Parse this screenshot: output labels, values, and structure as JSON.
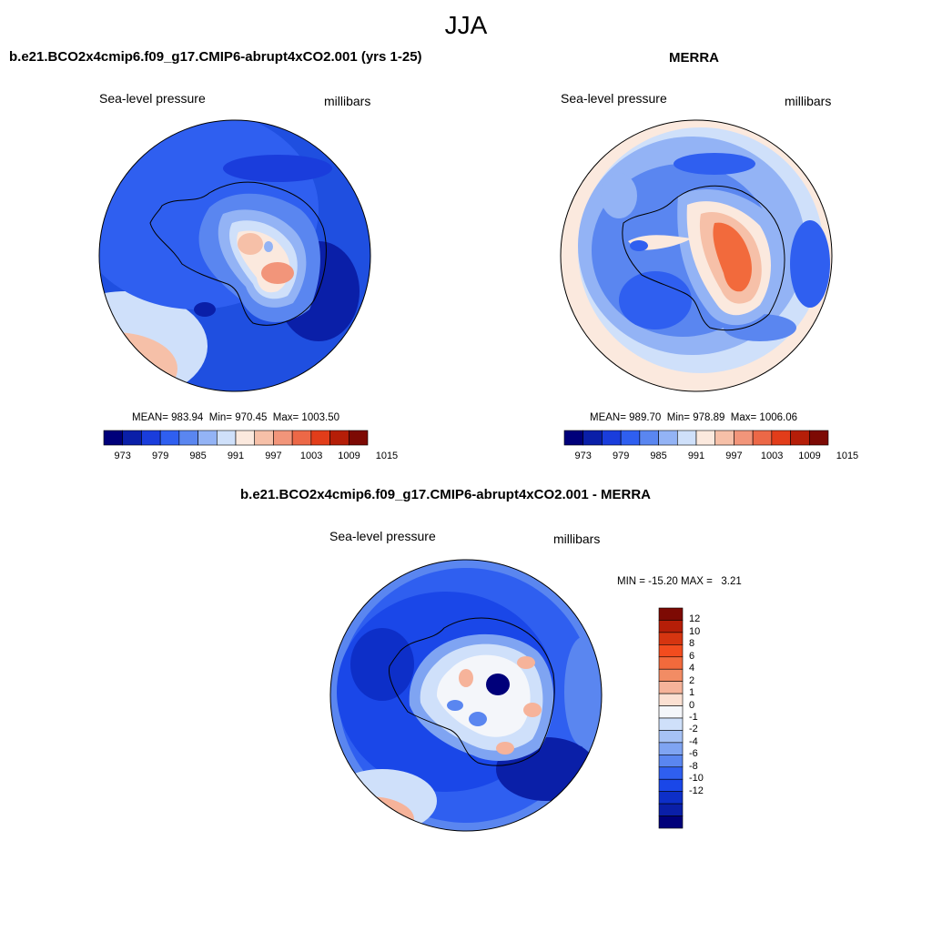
{
  "figure": {
    "season_title": "JJA"
  },
  "panels": {
    "model": {
      "title": "b.e21.BCO2x4cmip6.f09_g17.CMIP6-abrupt4xCO2.001 (yrs 1-25)",
      "left_label": "Sea-level pressure",
      "right_label": "millibars",
      "mean_label": "MEAN=",
      "mean": "983.94",
      "min_label": "Min=",
      "min": "970.45",
      "max_label": "Max=",
      "max": "1003.50"
    },
    "obs": {
      "title": "MERRA",
      "left_label": "Sea-level pressure",
      "right_label": "millibars",
      "mean_label": "MEAN=",
      "mean": "989.70",
      "min_label": "Min=",
      "min": "978.89",
      "max_label": "Max=",
      "max": "1006.06"
    },
    "diff": {
      "title": "b.e21.BCO2x4cmip6.f09_g17.CMIP6-abrupt4xCO2.001 - MERRA",
      "left_label": "Sea-level pressure",
      "right_label": "millibars",
      "minmax_text": "MIN = -15.20 MAX =   3.21"
    }
  },
  "colorbars": {
    "abs": {
      "colors": [
        "#00007a",
        "#0a1fa8",
        "#1a3ddc",
        "#2f5ff0",
        "#5a86f0",
        "#93b3f5",
        "#cfe0fa",
        "#fbe9de",
        "#f6c0a8",
        "#f2957a",
        "#ec6847",
        "#e23d1a",
        "#b51e08",
        "#7d0a04"
      ],
      "tick_labels": [
        "973",
        "979",
        "985",
        "991",
        "997",
        "1003",
        "1009",
        "1015"
      ]
    },
    "diff": {
      "colors": [
        "#7d0a04",
        "#b51e08",
        "#d63510",
        "#f24c1e",
        "#f26a3c",
        "#f28c64",
        "#f6b39a",
        "#fbe0d2",
        "#f4f6fa",
        "#cfe0fa",
        "#a6c2f5",
        "#7fa4f2",
        "#5a86f0",
        "#2f5ff0",
        "#1a47e8",
        "#0d2fc8",
        "#0a1fa8",
        "#00007a"
      ],
      "tick_labels": [
        "12",
        "10",
        "8",
        "6",
        "4",
        "2",
        "1",
        "0",
        "-1",
        "-2",
        "-4",
        "-6",
        "-8",
        "-10",
        "-12"
      ]
    }
  }
}
